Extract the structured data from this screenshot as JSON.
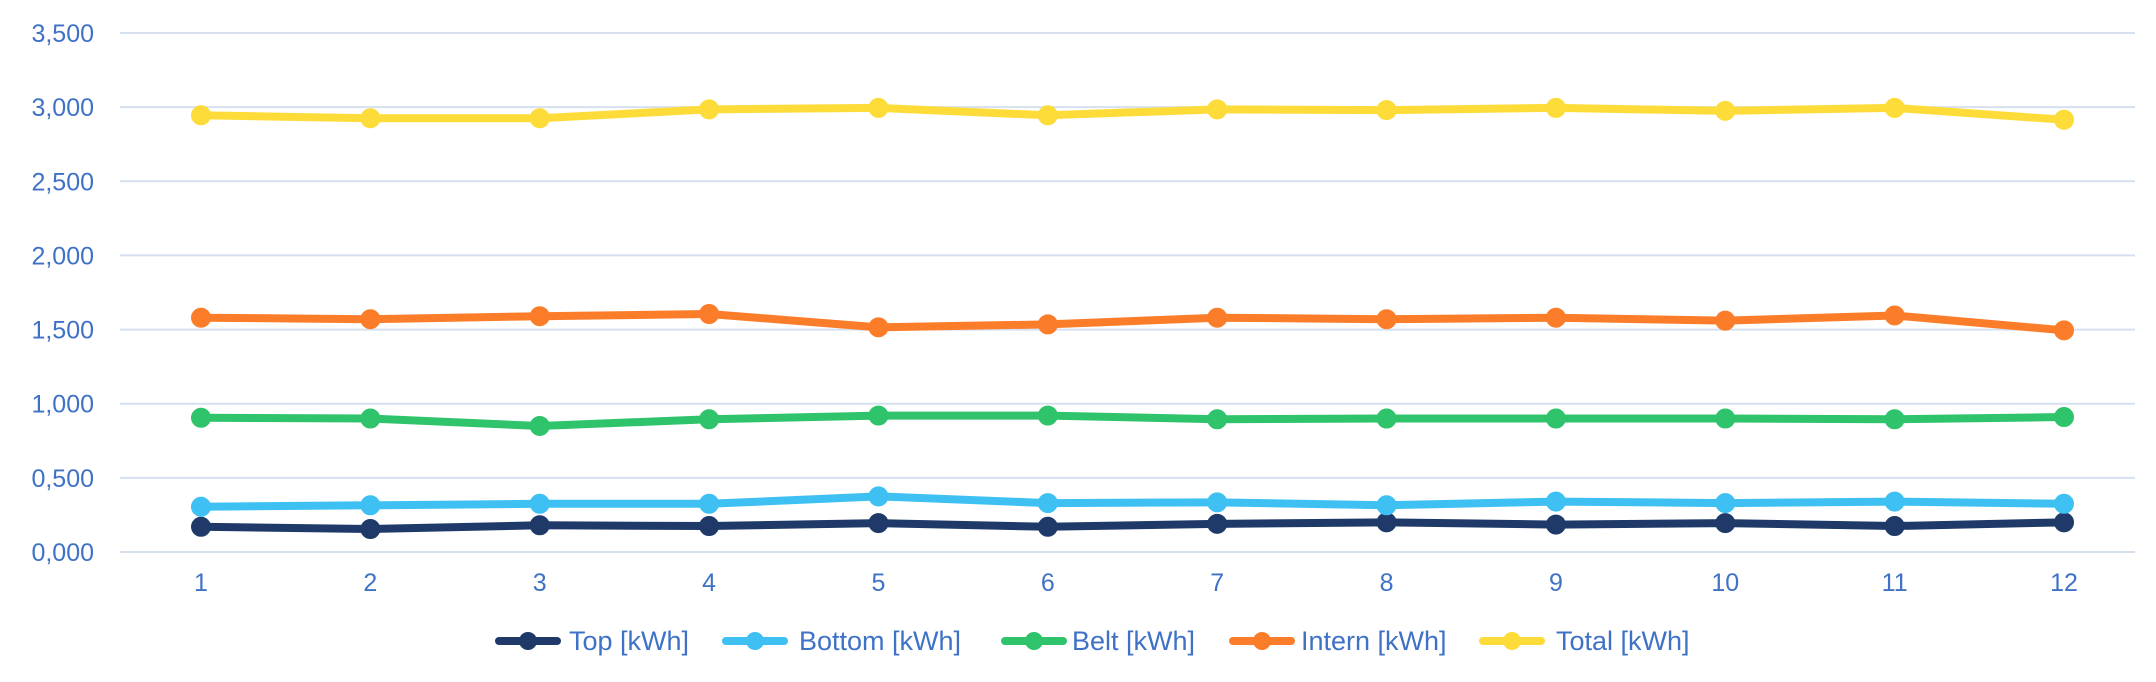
{
  "chart_data": {
    "type": "line",
    "categories": [
      "1",
      "2",
      "3",
      "4",
      "5",
      "6",
      "7",
      "8",
      "9",
      "10",
      "11",
      "12"
    ],
    "y_ticks": [
      "0,000",
      "0,500",
      "1,000",
      "1,500",
      "2,000",
      "2,500",
      "3,000",
      "3,500"
    ],
    "ylim": [
      0,
      3500
    ],
    "grid": true,
    "legend_position": "bottom",
    "series": [
      {
        "name": "Top [kWh]",
        "color": "#1f3a68",
        "values": [
          170,
          155,
          180,
          175,
          195,
          170,
          190,
          200,
          185,
          195,
          175,
          200
        ]
      },
      {
        "name": "Bottom [kWh]",
        "color": "#3fc0f3",
        "values": [
          305,
          315,
          325,
          325,
          375,
          330,
          335,
          315,
          340,
          330,
          340,
          325
        ]
      },
      {
        "name": "Belt [kWh]",
        "color": "#2fc46b",
        "values": [
          905,
          900,
          850,
          895,
          920,
          920,
          895,
          900,
          900,
          900,
          895,
          910
        ]
      },
      {
        "name": "Intern [kWh]",
        "color": "#fb7d2a",
        "values": [
          1580,
          1570,
          1590,
          1605,
          1515,
          1535,
          1580,
          1570,
          1580,
          1560,
          1595,
          1495
        ]
      },
      {
        "name": "Total [kWh]",
        "color": "#fddc3a",
        "values": [
          2945,
          2925,
          2925,
          2985,
          2995,
          2945,
          2985,
          2980,
          2995,
          2975,
          2995,
          2915
        ]
      }
    ]
  }
}
